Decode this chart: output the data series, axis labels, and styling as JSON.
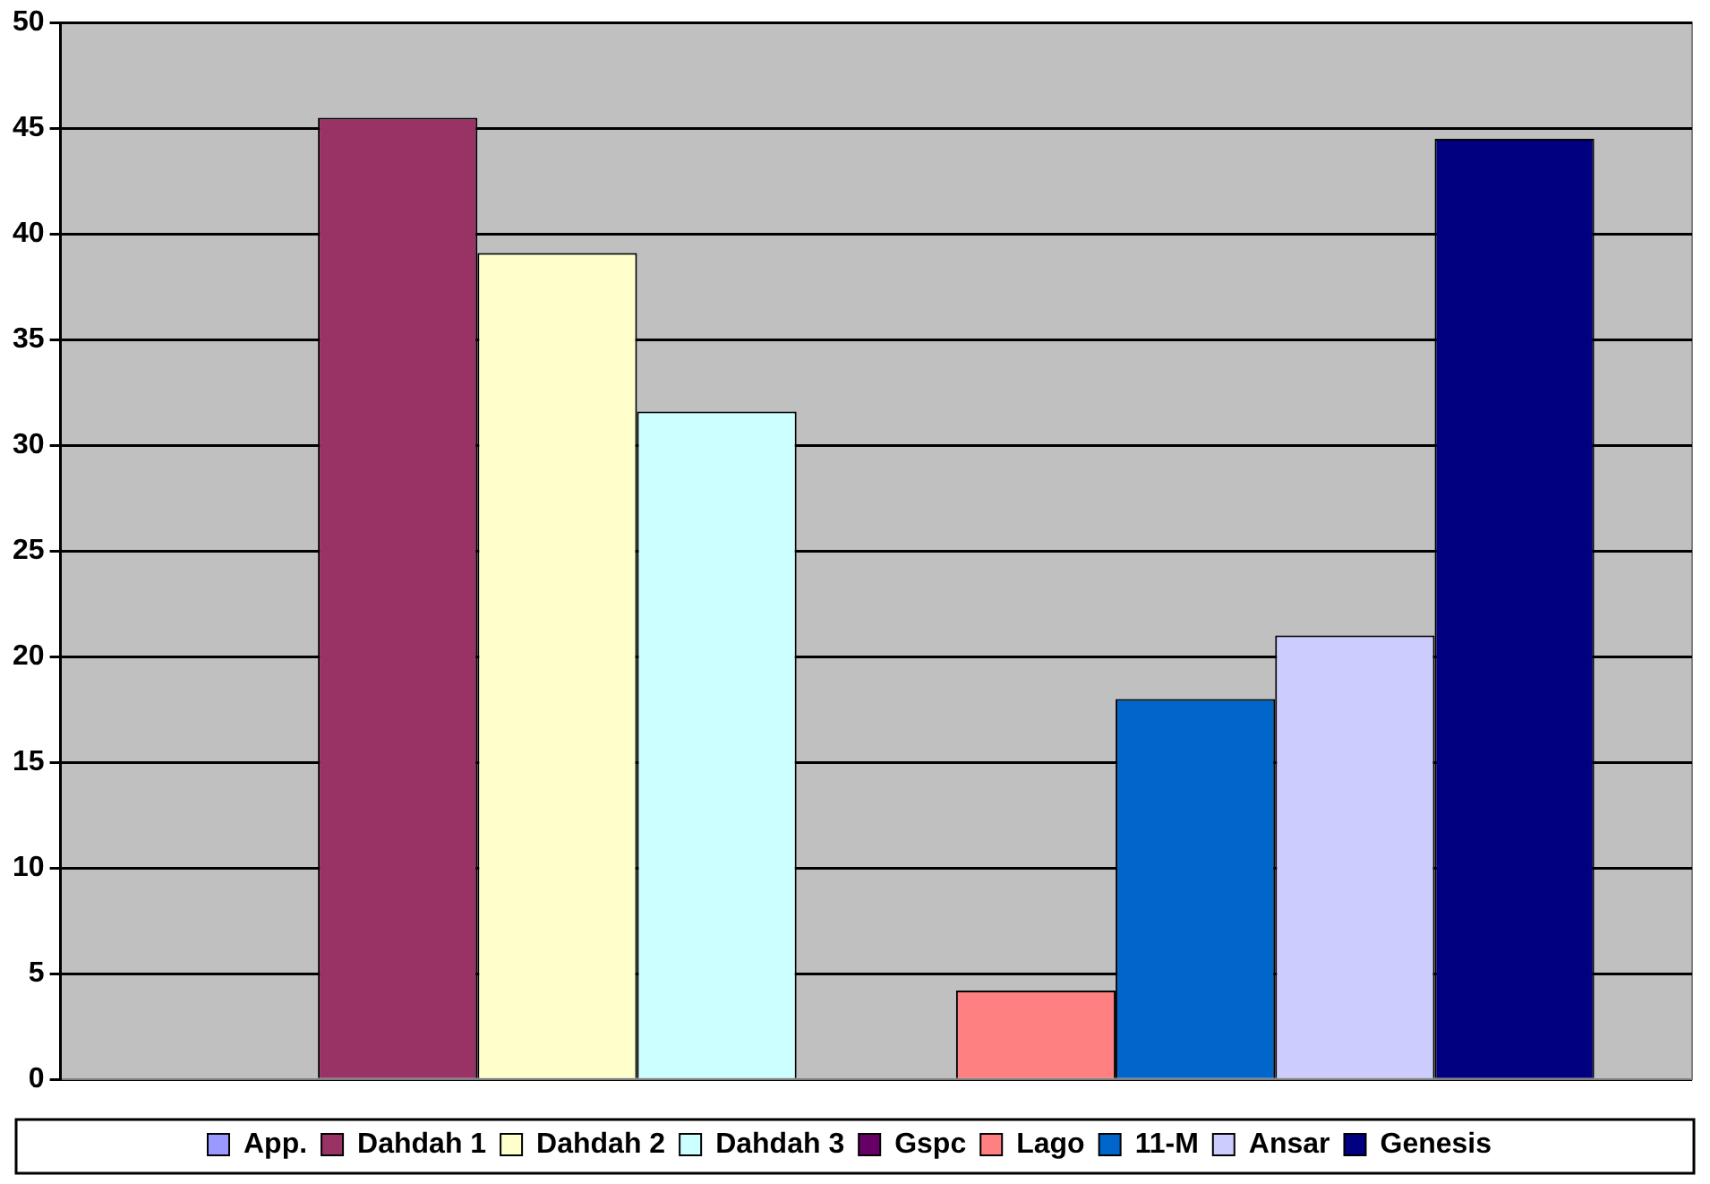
{
  "chart_data": {
    "type": "bar",
    "categories": [
      null
    ],
    "series": [
      {
        "name": "App.",
        "color": "#9999ff",
        "values": [
          null
        ]
      },
      {
        "name": "Dahdah 1",
        "color": "#993366",
        "values": [
          45.5
        ]
      },
      {
        "name": "Dahdah 2",
        "color": "#ffffcc",
        "values": [
          39.1
        ]
      },
      {
        "name": "Dahdah 3",
        "color": "#ccffff",
        "values": [
          31.6
        ]
      },
      {
        "name": "Gspc",
        "color": "#660066",
        "values": [
          null
        ]
      },
      {
        "name": "Lago",
        "color": "#ff8080",
        "values": [
          4.2
        ]
      },
      {
        "name": "11-M",
        "color": "#0066cc",
        "values": [
          18.0
        ]
      },
      {
        "name": "Ansar",
        "color": "#ccccff",
        "values": [
          21.0
        ]
      },
      {
        "name": "Genesis",
        "color": "#000080",
        "values": [
          44.5
        ]
      }
    ],
    "ylim": [
      0,
      50
    ],
    "yticks": [
      0,
      5,
      10,
      15,
      20,
      25,
      30,
      35,
      40,
      45,
      50
    ],
    "grid": "y",
    "legend": "bottom"
  }
}
